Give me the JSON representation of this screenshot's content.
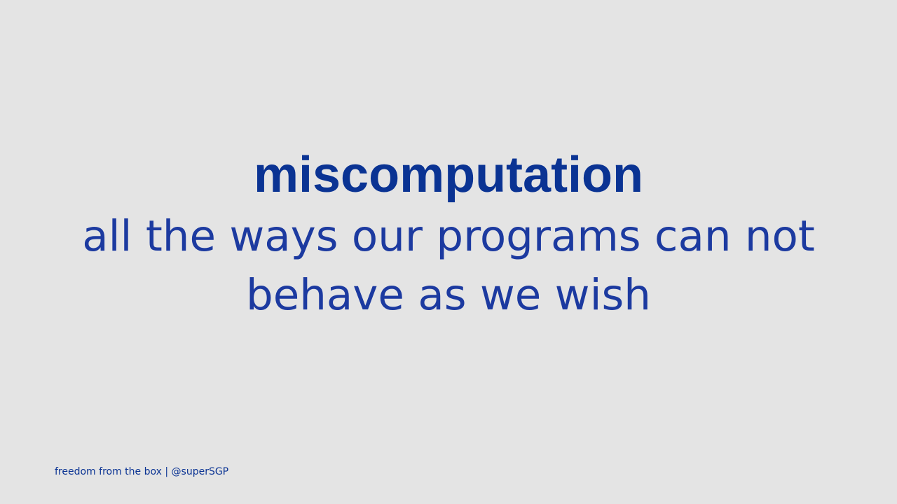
{
  "slide": {
    "title": "miscomputation",
    "subtitle_line1": "all the ways our programs can not",
    "subtitle_line2": "behave as we wish",
    "footer": "freedom from the box | @superSGP"
  },
  "colors": {
    "background": "#e4e4e4",
    "text": "#0a3393"
  }
}
